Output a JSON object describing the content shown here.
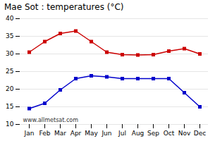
{
  "chart_data": {
    "type": "line",
    "title": "Mae Sot : temperatures (°C)",
    "categories": [
      "Jan",
      "Feb",
      "Mar",
      "Apr",
      "May",
      "Jun",
      "Jul",
      "Aug",
      "Sep",
      "Oct",
      "Nov",
      "Dec"
    ],
    "series": [
      {
        "color": "#cc0000",
        "marker": "square",
        "values": [
          30.5,
          33.5,
          35.8,
          36.5,
          33.5,
          30.5,
          29.8,
          29.7,
          29.8,
          30.8,
          31.5,
          30.0
        ]
      },
      {
        "color": "#0000cc",
        "marker": "square",
        "values": [
          14.5,
          16.0,
          19.8,
          23.0,
          23.8,
          23.5,
          23.0,
          23.0,
          23.0,
          23.0,
          19.0,
          15.0
        ]
      }
    ],
    "ylim": [
      10,
      40
    ],
    "yticks": [
      10,
      15,
      20,
      25,
      30,
      35,
      40
    ],
    "grid": true,
    "annotations": [
      "www.allmetsat.com"
    ]
  }
}
